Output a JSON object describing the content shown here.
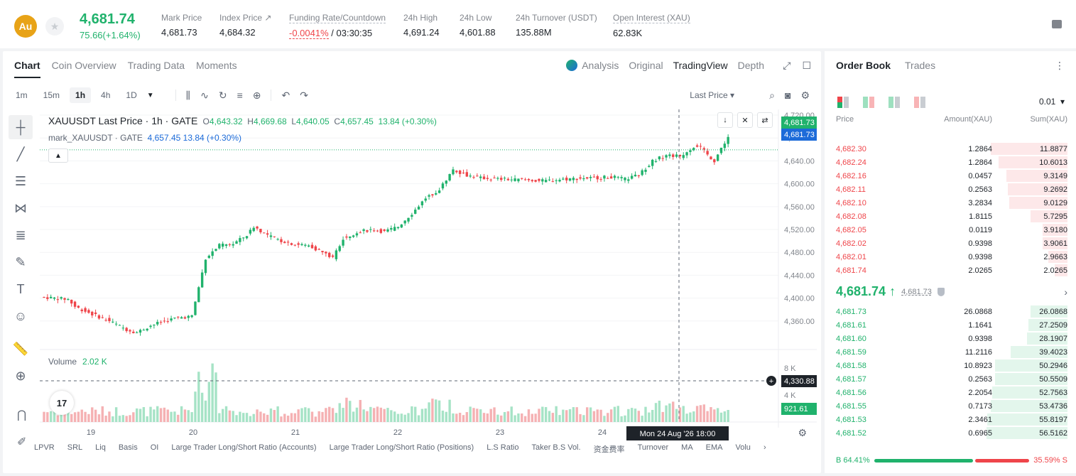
{
  "ticker": {
    "coin_logo": "Au",
    "last_price": "4,681.74",
    "change": "75.66(+1.64%)",
    "stats": [
      {
        "label": "Mark Price",
        "value": "4,681.73"
      },
      {
        "label": "Index Price ↗",
        "value": "4,684.32"
      },
      {
        "label": "Funding Rate/Countdown",
        "value_neg": "-0.0041%",
        "value": " / 03:30:35"
      },
      {
        "label": "24h High",
        "value": "4,691.24"
      },
      {
        "label": "24h Low",
        "value": "4,601.88"
      },
      {
        "label": "24h Turnover (USDT)",
        "value": "135.88M"
      },
      {
        "label": "Open Interest (XAU)",
        "value": "62.83K"
      }
    ]
  },
  "chart_panel": {
    "tabs": [
      "Chart",
      "Coin Overview",
      "Trading Data",
      "Moments"
    ],
    "views": [
      "Analysis",
      "Original",
      "TradingView",
      "Depth"
    ],
    "intervals": [
      "1m",
      "15m",
      "1h",
      "4h",
      "1D"
    ],
    "price_type": "Last Price",
    "symbol_line": "XAUUSDT Last Price · 1h · GATE",
    "ohlc": {
      "o": "4,643.32",
      "h": "4,669.68",
      "l": "4,640.05",
      "c": "4,657.45",
      "chg": "13.84 (+0.30%)"
    },
    "mark_line": "mark_XAUUSDT · GATE",
    "mark_vals": "4,657.45  13.84  (+0.30%)",
    "volume_label": "Volume",
    "volume_value": "2.02 K",
    "indicators": [
      "LPVR",
      "SRL",
      "Liq",
      "Basis",
      "OI",
      "Large Trader Long/Short Ratio (Accounts)",
      "Large Trader Long/Short Ratio (Positions)",
      "L.S Ratio",
      "Taker B.S Vol.",
      "资金费率",
      "Turnover",
      "MA",
      "EMA",
      "Volu"
    ],
    "tv_logo": "17",
    "crosshair_date": "Mon 24 Aug '26   18:00"
  },
  "chart_data": {
    "type": "candlestick",
    "y_ticks": [
      "4,720.00",
      "4,680.00",
      "4,640.00",
      "4,600.00",
      "4,560.00",
      "4,520.00",
      "4,480.00",
      "4,440.00",
      "4,400.00",
      "4,360.00"
    ],
    "x_ticks": [
      "19",
      "20",
      "21",
      "22",
      "23",
      "24"
    ],
    "vol_ticks": [
      "8 K",
      "4 K"
    ],
    "price_labels": {
      "last": "4,681.73",
      "mark": "4,681.73",
      "crosshair": "4,330.88",
      "volume_current": "921.61"
    },
    "ylim": [
      4320,
      4730
    ],
    "volume_ylim": [
      0,
      10000
    ],
    "colors": {
      "up": "#20b26c",
      "down": "#ef454a"
    }
  },
  "orderbook": {
    "tabs": [
      "Order Book",
      "Trades"
    ],
    "precision": "0.01",
    "headers": [
      "Price",
      "Amount(XAU)",
      "Sum(XAU)"
    ],
    "asks": [
      {
        "price": "4,682.30",
        "amount": "1.2864",
        "sum": "11.8877",
        "depth": 0.95
      },
      {
        "price": "4,682.24",
        "amount": "1.2864",
        "sum": "10.6013",
        "depth": 0.85
      },
      {
        "price": "4,682.16",
        "amount": "0.0457",
        "sum": "9.3149",
        "depth": 0.75
      },
      {
        "price": "4,682.11",
        "amount": "0.2563",
        "sum": "9.2692",
        "depth": 0.74
      },
      {
        "price": "4,682.10",
        "amount": "3.2834",
        "sum": "9.0129",
        "depth": 0.72
      },
      {
        "price": "4,682.08",
        "amount": "1.8115",
        "sum": "5.7295",
        "depth": 0.46
      },
      {
        "price": "4,682.05",
        "amount": "0.0119",
        "sum": "3.9180",
        "depth": 0.31
      },
      {
        "price": "4,682.02",
        "amount": "0.9398",
        "sum": "3.9061",
        "depth": 0.31
      },
      {
        "price": "4,682.01",
        "amount": "0.9398",
        "sum": "2.9663",
        "depth": 0.24
      },
      {
        "price": "4,681.74",
        "amount": "2.0265",
        "sum": "2.0265",
        "depth": 0.16
      }
    ],
    "mid_price": "4,681.74 ↑",
    "mid_mark": "4,681.73",
    "bids": [
      {
        "price": "4,681.73",
        "amount": "26.0868",
        "sum": "26.0868",
        "depth": 0.46
      },
      {
        "price": "4,681.61",
        "amount": "1.1641",
        "sum": "27.2509",
        "depth": 0.48
      },
      {
        "price": "4,681.60",
        "amount": "0.9398",
        "sum": "28.1907",
        "depth": 0.5
      },
      {
        "price": "4,681.59",
        "amount": "11.2116",
        "sum": "39.4023",
        "depth": 0.7
      },
      {
        "price": "4,681.58",
        "amount": "10.8923",
        "sum": "50.2946",
        "depth": 0.89
      },
      {
        "price": "4,681.57",
        "amount": "0.2563",
        "sum": "50.5509",
        "depth": 0.89
      },
      {
        "price": "4,681.56",
        "amount": "2.2054",
        "sum": "52.7563",
        "depth": 0.93
      },
      {
        "price": "4,681.55",
        "amount": "0.7173",
        "sum": "53.4736",
        "depth": 0.95
      },
      {
        "price": "4,681.53",
        "amount": "2.3461",
        "sum": "55.8197",
        "depth": 0.99
      },
      {
        "price": "4,681.52",
        "amount": "0.6965",
        "sum": "56.5162",
        "depth": 1.0
      }
    ],
    "buy_ratio": "B 64.41%",
    "sell_ratio": "35.59% S",
    "buy_fraction": 0.6441
  }
}
